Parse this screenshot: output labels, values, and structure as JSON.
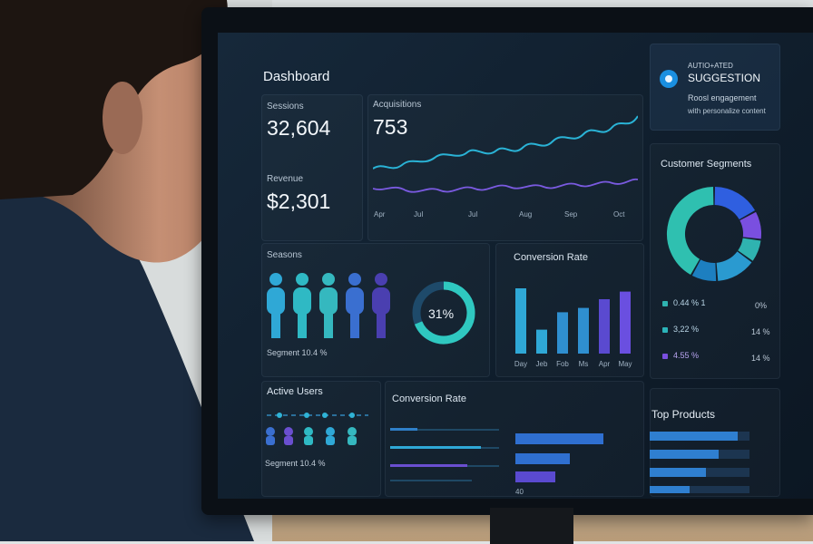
{
  "dashboard": {
    "title": "Dashboard",
    "sessions": {
      "label": "Sessions",
      "value": "32,604"
    },
    "revenue": {
      "label": "Revenue",
      "value": "$2,301"
    },
    "acquisitions": {
      "label": "Acquisitions",
      "value": "753",
      "x_labels": [
        "Apr",
        "Jul",
        "Jul",
        "Aug",
        "Sep",
        "Oct"
      ]
    },
    "seasons": {
      "label": "Seasons",
      "segment_text": "Segment 10.4 %",
      "donut_value": "31%",
      "donut_fraction": 0.69
    },
    "conversion_rate_bars": {
      "label": "Conversion Rate",
      "categories": [
        "Day",
        "Jeb",
        "Fob",
        "Ms",
        "Apr",
        "May"
      ],
      "values": [
        60,
        22,
        38,
        42,
        50,
        57
      ]
    },
    "suggestion": {
      "eyebrow": "AUTIO+ATED",
      "title": "SUGGESTION",
      "line1": "Roosl engagement",
      "line2": "with personalize content"
    },
    "customer_segments": {
      "label": "Customer Segments",
      "legend": [
        {
          "left": "0.44 % 1",
          "right": "0%",
          "color": "#2fb3b0"
        },
        {
          "left": "3,22 %",
          "right": "14 %",
          "color": "#2bb3b8"
        },
        {
          "left": "4.55 %",
          "right": "14 %",
          "color": "#7a4fe0"
        }
      ],
      "slices": [
        {
          "value": 17,
          "color": "#2f5fe0"
        },
        {
          "value": 10,
          "color": "#7a4fe0"
        },
        {
          "value": 8,
          "color": "#2fb3b0"
        },
        {
          "value": 14,
          "color": "#2a9ad0"
        },
        {
          "value": 9,
          "color": "#1d7fc0"
        },
        {
          "value": 42,
          "color": "#2fc0b0"
        }
      ]
    },
    "active_users": {
      "label": "Active Users",
      "segment_text": "Segment 10.4 %"
    },
    "conversion_rate_hbars": {
      "label": "Conversion Rate",
      "axis_label": "40"
    },
    "top_products": {
      "label": "Top Products"
    }
  }
}
